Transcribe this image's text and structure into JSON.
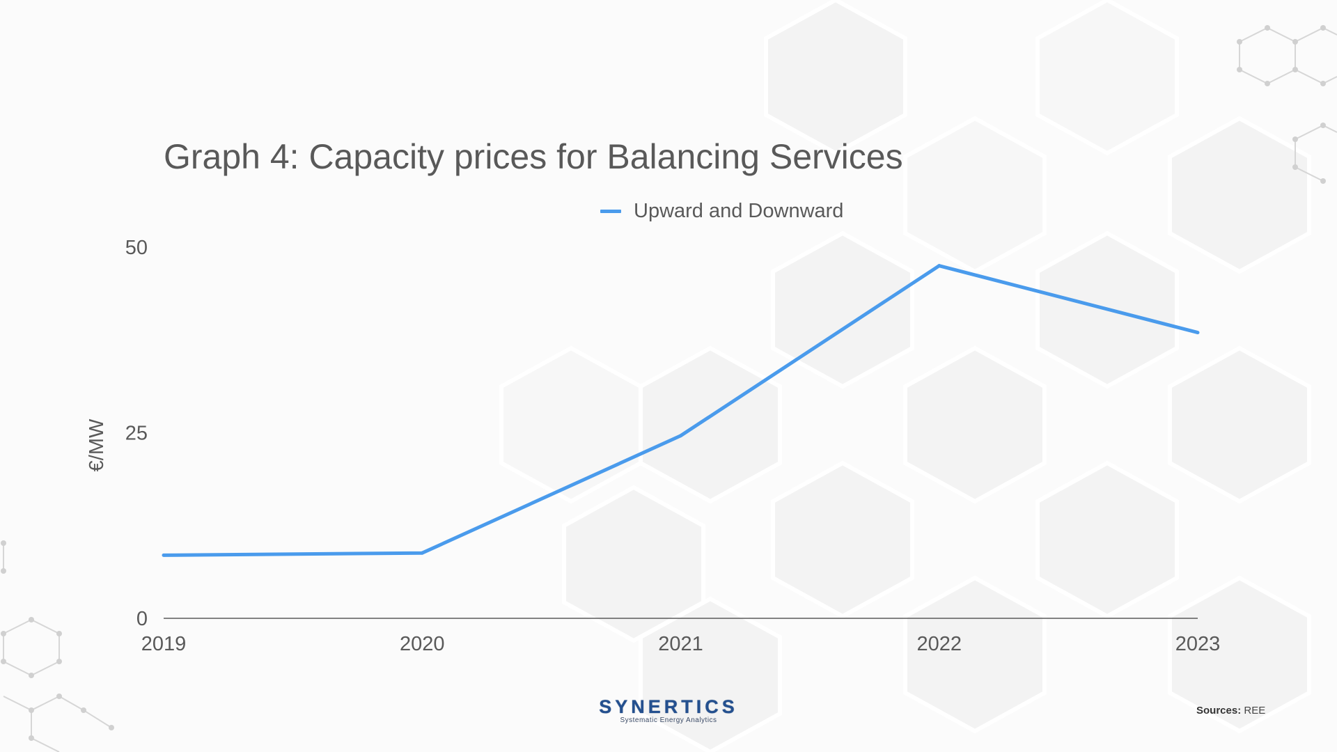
{
  "page": {
    "title": "Graph 4: Capacity prices for Balancing Services",
    "sources_label": "Sources:",
    "sources_value": "REE"
  },
  "logo": {
    "name": "SYNERTICS",
    "tagline": "Systematic Energy Analytics"
  },
  "chart_data": {
    "type": "line",
    "title": "Graph 4: Capacity prices for Balancing Services",
    "xlabel": "",
    "ylabel": "€/MW",
    "x": [
      "2019",
      "2020",
      "2021",
      "2022",
      "2023"
    ],
    "series": [
      {
        "name": "Upward and Downward",
        "color": "#4a9bec",
        "values": [
          8.5,
          8.8,
          24.6,
          47.5,
          38.5
        ]
      }
    ],
    "ylim": [
      0,
      50
    ],
    "yticks": [
      0,
      25,
      50
    ],
    "grid": false,
    "legend_position": "top-center"
  },
  "colors": {
    "series": "#4a9bec",
    "text": "#595959",
    "axis": "#595959",
    "logo": "#24508f"
  }
}
